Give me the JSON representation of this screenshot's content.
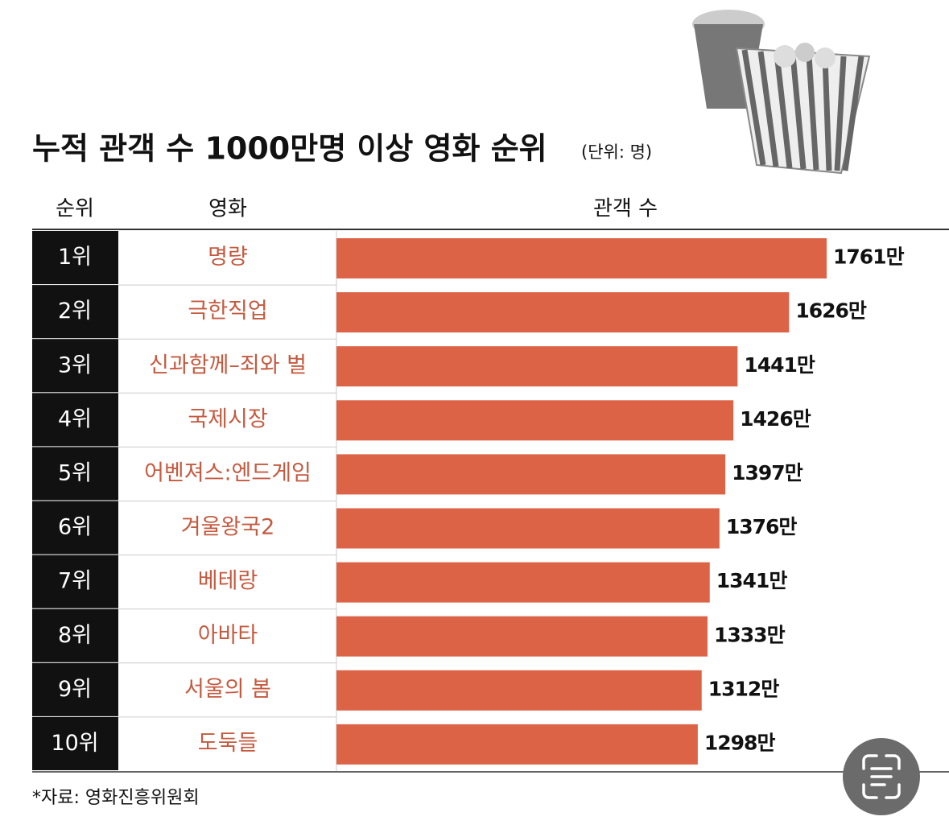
{
  "chart_data": {
    "type": "bar",
    "title": "누적 관객 수 1000만명 이상 영화 순위",
    "unit_note": "(단위: 명)",
    "headers": {
      "rank": "순위",
      "movie": "영화",
      "audience": "관객 수"
    },
    "ranks": [
      "1위",
      "2위",
      "3위",
      "4위",
      "5위",
      "6위",
      "7위",
      "8위",
      "9위",
      "10위"
    ],
    "categories": [
      "명량",
      "극한직업",
      "신과함께–죄와 벌",
      "국제시장",
      "어벤져스:엔드게임",
      "겨울왕국2",
      "베테랑",
      "아바타",
      "서울의 봄",
      "도둑들"
    ],
    "values": [
      1761,
      1626,
      1441,
      1426,
      1397,
      1376,
      1341,
      1333,
      1312,
      1298
    ],
    "value_labels": [
      "1761만",
      "1626만",
      "1441만",
      "1426만",
      "1397만",
      "1376만",
      "1341만",
      "1333만",
      "1312만",
      "1298만"
    ],
    "color": "#dd6347",
    "source": "*자료: 영화진흥위원회"
  }
}
